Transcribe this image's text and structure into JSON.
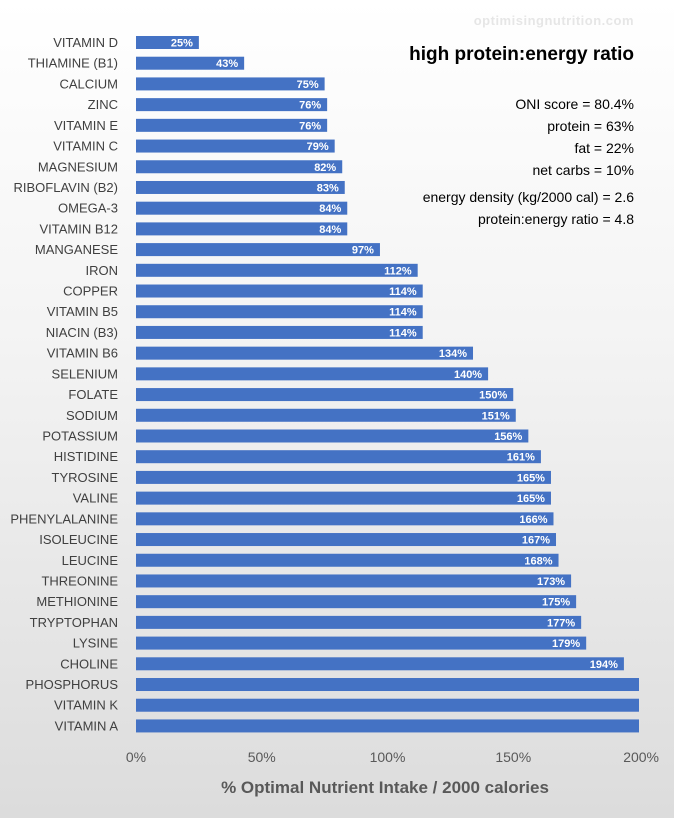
{
  "watermark": "optimisingnutrition.com",
  "stats": {
    "oni": "ONI score = 80.4%",
    "protein": "protein = 63%",
    "fat": "fat = 22%",
    "carbs": "net carbs = 10%",
    "energy_density": "energy density (kg/2000 cal) = 2.6",
    "pe_ratio": "protein:energy ratio = 4.8"
  },
  "chart_data": {
    "type": "bar",
    "orientation": "horizontal",
    "title": "high protein:energy ratio",
    "xlabel": "% Optimal Nutrient Intake / 2000 calories",
    "ylabel": "",
    "xlim": [
      0,
      200
    ],
    "ticks": [
      "0%",
      "50%",
      "100%",
      "150%",
      "200%"
    ],
    "tick_values": [
      0,
      50,
      100,
      150,
      200
    ],
    "categories": [
      "VITAMIN D",
      "THIAMINE (B1)",
      "CALCIUM",
      "ZINC",
      "VITAMIN E",
      "VITAMIN C",
      "MAGNESIUM",
      "RIBOFLAVIN (B2)",
      "OMEGA-3",
      "VITAMIN B12",
      "MANGANESE",
      "IRON",
      "COPPER",
      "VITAMIN B5",
      "NIACIN (B3)",
      "VITAMIN B6",
      "SELENIUM",
      "FOLATE",
      "SODIUM",
      "POTASSIUM",
      "HISTIDINE",
      "TYROSINE",
      "VALINE",
      "PHENYLALANINE",
      "ISOLEUCINE",
      "LEUCINE",
      "THREONINE",
      "METHIONINE",
      "TRYPTOPHAN",
      "LYSINE",
      "CHOLINE",
      "PHOSPHORUS",
      "VITAMIN K",
      "VITAMIN A"
    ],
    "values": [
      25,
      43,
      75,
      76,
      76,
      79,
      82,
      83,
      84,
      84,
      97,
      112,
      114,
      114,
      114,
      134,
      140,
      150,
      151,
      156,
      161,
      165,
      165,
      166,
      167,
      168,
      173,
      175,
      177,
      179,
      194,
      200,
      200,
      200
    ],
    "labels": [
      "25%",
      "43%",
      "75%",
      "76%",
      "76%",
      "79%",
      "82%",
      "83%",
      "84%",
      "84%",
      "97%",
      "112%",
      "114%",
      "114%",
      "114%",
      "134%",
      "140%",
      "150%",
      "151%",
      "156%",
      "161%",
      "165%",
      "165%",
      "166%",
      "167%",
      "168%",
      "173%",
      "175%",
      "177%",
      "179%",
      "194%",
      "",
      "",
      ""
    ],
    "bar_color": "#4472C4",
    "grid": false
  }
}
